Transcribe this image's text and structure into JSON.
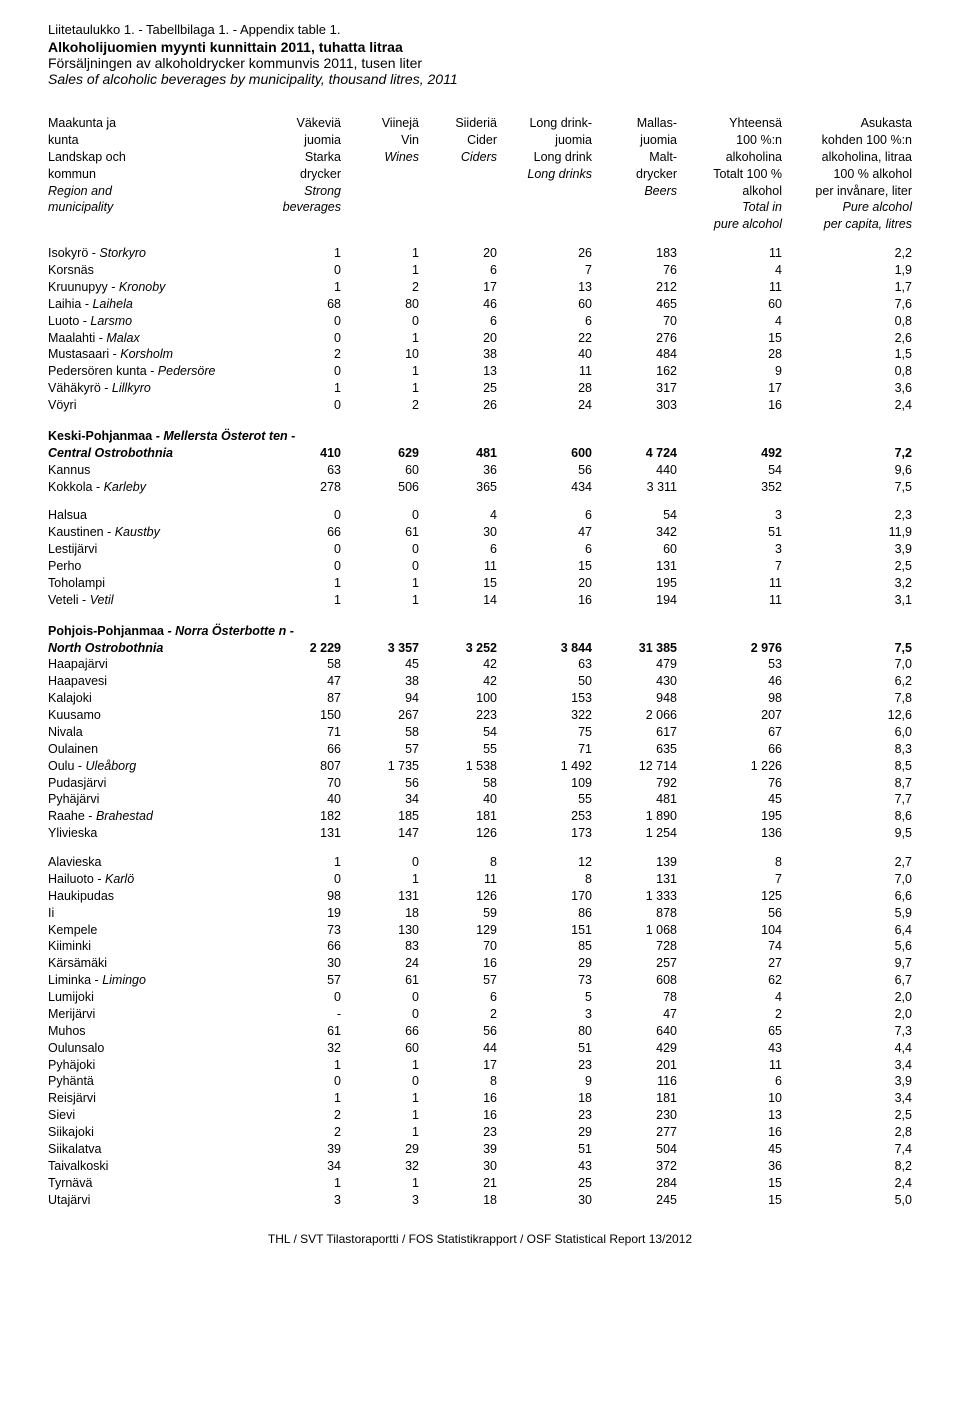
{
  "appendix_line": "Liitetaulukko 1. - Tabellbilaga 1. - Appendix table 1.",
  "title_fi": "Alkoholijuomien myynti kunnittain 2011, tuhatta litraa",
  "title_sv": "Försäljningen av alkoholdrycker kommunvis 2011, tusen liter",
  "title_en": "Sales of alcoholic beverages by municipality, thousand litres, 2011",
  "headers": {
    "label": [
      "Maakunta ja",
      "kunta",
      "Landskap och",
      "kommun",
      "Region and",
      "municipality"
    ],
    "label_italic": [
      false,
      false,
      false,
      false,
      true,
      true
    ],
    "c1": [
      "Väkeviä",
      "juomia",
      "Starka",
      "drycker",
      "Strong",
      "beverages"
    ],
    "c1_italic": [
      false,
      false,
      false,
      false,
      true,
      true
    ],
    "c2": [
      "Viinejä",
      "Vin",
      "Wines"
    ],
    "c2_italic": [
      false,
      false,
      true
    ],
    "c3": [
      "Siideriä",
      "Cider",
      "Ciders"
    ],
    "c3_italic": [
      false,
      false,
      true
    ],
    "c4": [
      "Long drink-",
      "juomia",
      "Long drink",
      "Long drinks"
    ],
    "c4_italic": [
      false,
      false,
      false,
      true
    ],
    "c5": [
      "Mallas-",
      "juomia",
      "Malt-",
      "drycker",
      "Beers"
    ],
    "c5_italic": [
      false,
      false,
      false,
      false,
      true
    ],
    "c6": [
      "Yhteensä",
      "100 %:n",
      "alkoholina",
      "Totalt 100 %",
      "alkohol",
      "Total in",
      "pure alcohol"
    ],
    "c6_italic": [
      false,
      false,
      false,
      false,
      false,
      true,
      true
    ],
    "c7": [
      "Asukasta",
      "kohden 100 %:n",
      "alkoholina, litraa",
      "100 % alkohol",
      "per invånare, liter",
      "Pure alcohol",
      "per capita, litres"
    ],
    "c7_italic": [
      false,
      false,
      false,
      false,
      false,
      true,
      true
    ]
  },
  "groups": [
    {
      "rows": [
        {
          "label_plain": "Isokyrö - ",
          "label_em": "Storkyro",
          "v": [
            "1",
            "1",
            "20",
            "26",
            "183",
            "11",
            "2,2"
          ]
        },
        {
          "label_plain": "Korsnäs",
          "label_em": "",
          "v": [
            "0",
            "1",
            "6",
            "7",
            "76",
            "4",
            "1,9"
          ]
        },
        {
          "label_plain": "Kruunupyy - ",
          "label_em": "Kronoby",
          "v": [
            "1",
            "2",
            "17",
            "13",
            "212",
            "11",
            "1,7"
          ]
        },
        {
          "label_plain": "Laihia - ",
          "label_em": "Laihela",
          "v": [
            "68",
            "80",
            "46",
            "60",
            "465",
            "60",
            "7,6"
          ]
        },
        {
          "label_plain": "Luoto - ",
          "label_em": "Larsmo",
          "v": [
            "0",
            "0",
            "6",
            "6",
            "70",
            "4",
            "0,8"
          ]
        },
        {
          "label_plain": "Maalahti - ",
          "label_em": "Malax",
          "v": [
            "0",
            "1",
            "20",
            "22",
            "276",
            "15",
            "2,6"
          ]
        },
        {
          "label_plain": "Mustasaari - ",
          "label_em": "Korsholm",
          "v": [
            "2",
            "10",
            "38",
            "40",
            "484",
            "28",
            "1,5"
          ]
        },
        {
          "label_plain": "Pedersören kunta - ",
          "label_em": "Pedersöre",
          "v": [
            "0",
            "1",
            "13",
            "11",
            "162",
            "9",
            "0,8"
          ]
        },
        {
          "label_plain": "Vähäkyrö - ",
          "label_em": "Lillkyro",
          "v": [
            "1",
            "1",
            "25",
            "28",
            "317",
            "17",
            "3,6"
          ]
        },
        {
          "label_plain": "Vöyri",
          "label_em": "",
          "v": [
            "0",
            "2",
            "26",
            "24",
            "303",
            "16",
            "2,4"
          ]
        }
      ]
    },
    {
      "section_lines": [
        {
          "plain": "Keski-Pohjanmaa",
          "em": " - Mellersta Österot ten -"
        }
      ],
      "section_total": {
        "label_em": "Central Ostrobothnia",
        "v": [
          "410",
          "629",
          "481",
          "600",
          "4 724",
          "492",
          "7,2"
        ]
      },
      "rows_a": [
        {
          "label_plain": "Kannus",
          "label_em": "",
          "v": [
            "63",
            "60",
            "36",
            "56",
            "440",
            "54",
            "9,6"
          ]
        },
        {
          "label_plain": "Kokkola - ",
          "label_em": "Karleby",
          "v": [
            "278",
            "506",
            "365",
            "434",
            "3 311",
            "352",
            "7,5"
          ]
        }
      ],
      "rows_b": [
        {
          "label_plain": "Halsua",
          "label_em": "",
          "v": [
            "0",
            "0",
            "4",
            "6",
            "54",
            "3",
            "2,3"
          ]
        },
        {
          "label_plain": "Kaustinen - ",
          "label_em": "Kaustby",
          "v": [
            "66",
            "61",
            "30",
            "47",
            "342",
            "51",
            "11,9"
          ]
        },
        {
          "label_plain": "Lestijärvi",
          "label_em": "",
          "v": [
            "0",
            "0",
            "6",
            "6",
            "60",
            "3",
            "3,9"
          ]
        },
        {
          "label_plain": "Perho",
          "label_em": "",
          "v": [
            "0",
            "0",
            "11",
            "15",
            "131",
            "7",
            "2,5"
          ]
        },
        {
          "label_plain": "Toholampi",
          "label_em": "",
          "v": [
            "1",
            "1",
            "15",
            "20",
            "195",
            "11",
            "3,2"
          ]
        },
        {
          "label_plain": "Veteli - ",
          "label_em": "Vetil",
          "v": [
            "1",
            "1",
            "14",
            "16",
            "194",
            "11",
            "3,1"
          ]
        }
      ]
    },
    {
      "section_lines": [
        {
          "plain": "Pohjois-Pohjanmaa",
          "em": " - Norra Österbotte n -"
        }
      ],
      "section_total": {
        "label_em": "North Ostrobothnia",
        "v": [
          "2 229",
          "3 357",
          "3 252",
          "3 844",
          "31 385",
          "2 976",
          "7,5"
        ]
      },
      "rows_a": [
        {
          "label_plain": "Haapajärvi",
          "label_em": "",
          "v": [
            "58",
            "45",
            "42",
            "63",
            "479",
            "53",
            "7,0"
          ]
        },
        {
          "label_plain": "Haapavesi",
          "label_em": "",
          "v": [
            "47",
            "38",
            "42",
            "50",
            "430",
            "46",
            "6,2"
          ]
        },
        {
          "label_plain": "Kalajoki",
          "label_em": "",
          "v": [
            "87",
            "94",
            "100",
            "153",
            "948",
            "98",
            "7,8"
          ]
        },
        {
          "label_plain": "Kuusamo",
          "label_em": "",
          "v": [
            "150",
            "267",
            "223",
            "322",
            "2 066",
            "207",
            "12,6"
          ]
        },
        {
          "label_plain": "Nivala",
          "label_em": "",
          "v": [
            "71",
            "58",
            "54",
            "75",
            "617",
            "67",
            "6,0"
          ]
        },
        {
          "label_plain": "Oulainen",
          "label_em": "",
          "v": [
            "66",
            "57",
            "55",
            "71",
            "635",
            "66",
            "8,3"
          ]
        },
        {
          "label_plain": "Oulu - ",
          "label_em": "Uleåborg",
          "v": [
            "807",
            "1 735",
            "1 538",
            "1 492",
            "12 714",
            "1 226",
            "8,5"
          ]
        },
        {
          "label_plain": "Pudasjärvi",
          "label_em": "",
          "v": [
            "70",
            "56",
            "58",
            "109",
            "792",
            "76",
            "8,7"
          ]
        },
        {
          "label_plain": "Pyhäjärvi",
          "label_em": "",
          "v": [
            "40",
            "34",
            "40",
            "55",
            "481",
            "45",
            "7,7"
          ]
        },
        {
          "label_plain": "Raahe - ",
          "label_em": "Brahestad",
          "v": [
            "182",
            "185",
            "181",
            "253",
            "1 890",
            "195",
            "8,6"
          ]
        },
        {
          "label_plain": "Ylivieska",
          "label_em": "",
          "v": [
            "131",
            "147",
            "126",
            "173",
            "1 254",
            "136",
            "9,5"
          ]
        }
      ],
      "rows_b": [
        {
          "label_plain": "Alavieska",
          "label_em": "",
          "v": [
            "1",
            "0",
            "8",
            "12",
            "139",
            "8",
            "2,7"
          ]
        },
        {
          "label_plain": "Hailuoto - ",
          "label_em": "Karlö",
          "v": [
            "0",
            "1",
            "11",
            "8",
            "131",
            "7",
            "7,0"
          ]
        },
        {
          "label_plain": "Haukipudas",
          "label_em": "",
          "v": [
            "98",
            "131",
            "126",
            "170",
            "1 333",
            "125",
            "6,6"
          ]
        },
        {
          "label_plain": "Ii",
          "label_em": "",
          "v": [
            "19",
            "18",
            "59",
            "86",
            "878",
            "56",
            "5,9"
          ]
        },
        {
          "label_plain": "Kempele",
          "label_em": "",
          "v": [
            "73",
            "130",
            "129",
            "151",
            "1 068",
            "104",
            "6,4"
          ]
        },
        {
          "label_plain": "Kiiminki",
          "label_em": "",
          "v": [
            "66",
            "83",
            "70",
            "85",
            "728",
            "74",
            "5,6"
          ]
        },
        {
          "label_plain": "Kärsämäki",
          "label_em": "",
          "v": [
            "30",
            "24",
            "16",
            "29",
            "257",
            "27",
            "9,7"
          ]
        },
        {
          "label_plain": "Liminka - ",
          "label_em": "Limingo",
          "v": [
            "57",
            "61",
            "57",
            "73",
            "608",
            "62",
            "6,7"
          ]
        },
        {
          "label_plain": "Lumijoki",
          "label_em": "",
          "v": [
            "0",
            "0",
            "6",
            "5",
            "78",
            "4",
            "2,0"
          ]
        },
        {
          "label_plain": "Merijärvi",
          "label_em": "",
          "v": [
            "-",
            "0",
            "2",
            "3",
            "47",
            "2",
            "2,0"
          ]
        },
        {
          "label_plain": "Muhos",
          "label_em": "",
          "v": [
            "61",
            "66",
            "56",
            "80",
            "640",
            "65",
            "7,3"
          ]
        },
        {
          "label_plain": "Oulunsalo",
          "label_em": "",
          "v": [
            "32",
            "60",
            "44",
            "51",
            "429",
            "43",
            "4,4"
          ]
        },
        {
          "label_plain": "Pyhäjoki",
          "label_em": "",
          "v": [
            "1",
            "1",
            "17",
            "23",
            "201",
            "11",
            "3,4"
          ]
        },
        {
          "label_plain": "Pyhäntä",
          "label_em": "",
          "v": [
            "0",
            "0",
            "8",
            "9",
            "116",
            "6",
            "3,9"
          ]
        },
        {
          "label_plain": "Reisjärvi",
          "label_em": "",
          "v": [
            "1",
            "1",
            "16",
            "18",
            "181",
            "10",
            "3,4"
          ]
        },
        {
          "label_plain": "Sievi",
          "label_em": "",
          "v": [
            "2",
            "1",
            "16",
            "23",
            "230",
            "13",
            "2,5"
          ]
        },
        {
          "label_plain": "Siikajoki",
          "label_em": "",
          "v": [
            "2",
            "1",
            "23",
            "29",
            "277",
            "16",
            "2,8"
          ]
        },
        {
          "label_plain": "Siikalatva",
          "label_em": "",
          "v": [
            "39",
            "29",
            "39",
            "51",
            "504",
            "45",
            "7,4"
          ]
        },
        {
          "label_plain": "Taivalkoski",
          "label_em": "",
          "v": [
            "34",
            "32",
            "30",
            "43",
            "372",
            "36",
            "8,2"
          ]
        },
        {
          "label_plain": "Tyrnävä",
          "label_em": "",
          "v": [
            "1",
            "1",
            "21",
            "25",
            "284",
            "15",
            "2,4"
          ]
        },
        {
          "label_plain": "Utajärvi",
          "label_em": "",
          "v": [
            "3",
            "3",
            "18",
            "30",
            "245",
            "15",
            "5,0"
          ]
        }
      ]
    }
  ],
  "footer": "THL / SVT Tilastoraportti / FOS Statistikrapport / OSF Statistical Report 13/2012",
  "column_widths": [
    "215px",
    "78px",
    "78px",
    "78px",
    "95px",
    "85px",
    "105px",
    "130px"
  ]
}
